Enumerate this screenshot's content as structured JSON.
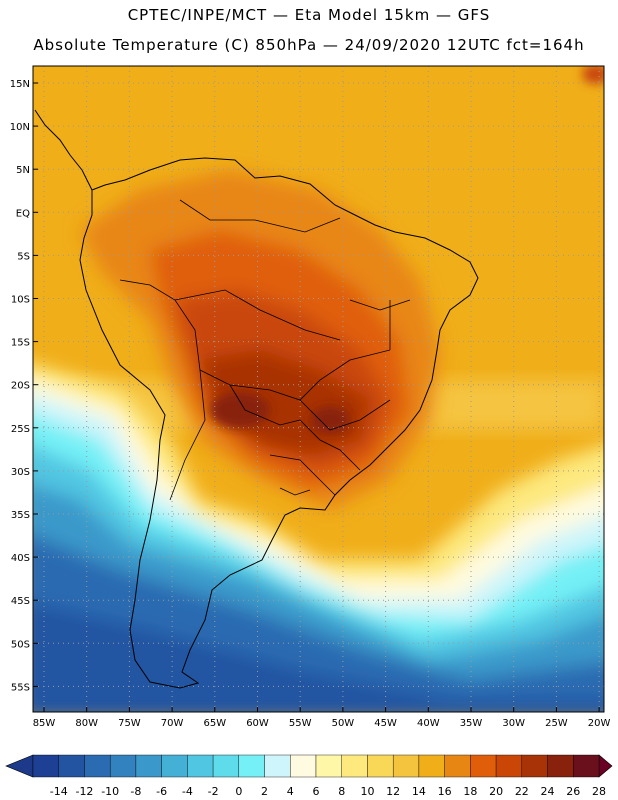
{
  "header": {
    "line1": "CPTEC/INPE/MCT —  Eta Model 15km — GFS",
    "line2": "Absolute Temperature (C) 850hPa — 24/09/2020 12UTC fct=164h"
  },
  "lat_labels": [
    "15N",
    "10N",
    "5N",
    "EQ",
    "5S",
    "10S",
    "15S",
    "20S",
    "25S",
    "30S",
    "35S",
    "40S",
    "45S",
    "50S",
    "55S"
  ],
  "lon_labels": [
    "85W",
    "80W",
    "75W",
    "70W",
    "65W",
    "60W",
    "55W",
    "50W",
    "45W",
    "40W",
    "35W",
    "30W",
    "25W",
    "20W"
  ],
  "colorbar": {
    "labels": [
      "-14",
      "-12",
      "-10",
      "-8",
      "-6",
      "-4",
      "-2",
      "0",
      "2",
      "4",
      "6",
      "8",
      "10",
      "12",
      "14",
      "16",
      "18",
      "20",
      "22",
      "24",
      "26",
      "28"
    ],
    "colors": [
      "#1d3f94",
      "#2354a2",
      "#2b6bb1",
      "#3282bf",
      "#3a99ca",
      "#44b0d6",
      "#51c6e2",
      "#5fdcec",
      "#74f0f6",
      "#cdf5fb",
      "#fffbe0",
      "#fff7a8",
      "#fde97e",
      "#f9d757",
      "#f5c43f",
      "#f0ae19",
      "#e88614",
      "#e05e09",
      "#c94607",
      "#a83306",
      "#88220c",
      "#6a0f1c"
    ],
    "low_color": "#1d3a8a",
    "high_color": "#6a0024"
  }
}
